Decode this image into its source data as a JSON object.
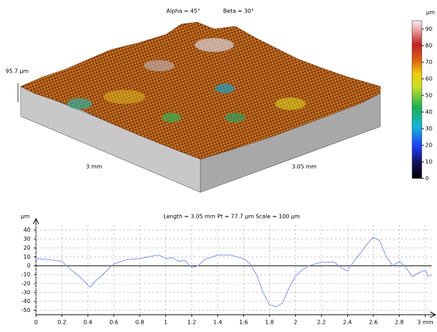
{
  "chart_data": [
    {
      "type": "surface",
      "annotations": [
        "Alpha = 45°",
        "Beta = 30°",
        "95.7 µm",
        "3 mm",
        "3.05 mm"
      ],
      "colorbar_label": "µm",
      "clim": [
        0,
        95
      ],
      "cticks": [
        0,
        10,
        20,
        30,
        40,
        50,
        60,
        70,
        80,
        90
      ]
    },
    {
      "type": "line",
      "title": "Length = 3.05 mm  Pt = 77.7 µm  Scale = 100 µm",
      "y_label": "µm",
      "color": "#7b8ff0",
      "x": [
        0,
        0.1,
        0.2,
        0.25,
        0.3,
        0.35,
        0.4,
        0.42,
        0.45,
        0.5,
        0.55,
        0.6,
        0.7,
        0.8,
        0.9,
        0.95,
        1.0,
        1.05,
        1.1,
        1.15,
        1.2,
        1.25,
        1.3,
        1.4,
        1.5,
        1.6,
        1.65,
        1.7,
        1.75,
        1.8,
        1.85,
        1.9,
        1.95,
        2.0,
        2.05,
        2.1,
        2.2,
        2.3,
        2.35,
        2.4,
        2.45,
        2.5,
        2.55,
        2.6,
        2.65,
        2.7,
        2.75,
        2.8,
        2.85,
        2.9,
        2.95,
        3.0,
        3.02,
        3.05
      ],
      "values": [
        8,
        7,
        5,
        -2,
        -8,
        -14,
        -22,
        -24,
        -18,
        -12,
        -5,
        2,
        7,
        8,
        11,
        12,
        8,
        9,
        5,
        6,
        -2,
        0,
        7,
        12,
        12,
        8,
        2,
        -10,
        -30,
        -44,
        -46,
        -42,
        -25,
        -12,
        -5,
        0,
        4,
        4,
        -2,
        -6,
        5,
        14,
        24,
        32,
        28,
        10,
        0,
        5,
        -2,
        -12,
        -8,
        -5,
        -12,
        -10
      ],
      "xlim": [
        0,
        3.05
      ],
      "ylim": [
        -55,
        46
      ],
      "xticks": [
        0,
        0.2,
        0.4,
        0.6,
        0.8,
        1,
        1.2,
        1.4,
        1.6,
        1.8,
        2,
        2.2,
        2.4,
        2.6,
        2.8,
        {
          "value": 3,
          "label": "3 mm"
        }
      ],
      "yticks": [
        40,
        30,
        20,
        10,
        0,
        -10,
        -20,
        -30,
        -40,
        -50
      ],
      "grid": true
    }
  ]
}
